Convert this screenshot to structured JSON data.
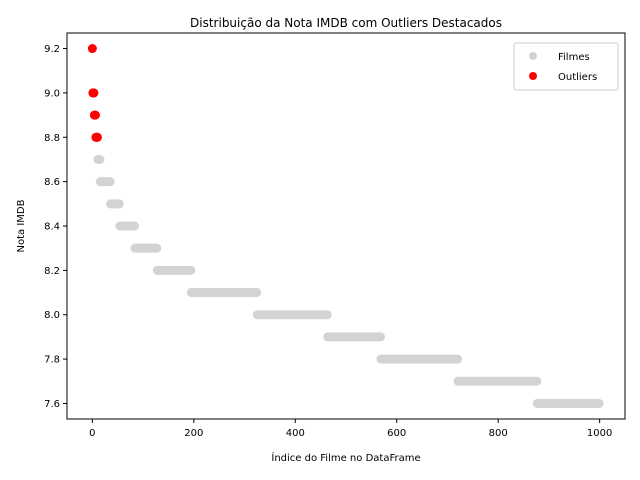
{
  "chart_data": {
    "type": "scatter",
    "title": "Distribuição da Nota IMDB com Outliers Destacados",
    "xlabel": "Índice do Filme no DataFrame",
    "ylabel": "Nota IMDB",
    "xlim": [
      -50,
      1050
    ],
    "ylim": [
      7.53,
      9.27
    ],
    "xticks": [
      0,
      200,
      400,
      600,
      800,
      1000
    ],
    "yticks": [
      7.6,
      7.8,
      8.0,
      8.2,
      8.4,
      8.6,
      8.8,
      9.0,
      9.2
    ],
    "grid": false,
    "legend_position": "upper right",
    "series": [
      {
        "name": "Filmes",
        "color": "#d3d3d3",
        "bands": [
          {
            "y": 8.7,
            "x_range": [
              11,
              15
            ]
          },
          {
            "y": 8.6,
            "x_range": [
              16,
              35
            ]
          },
          {
            "y": 8.5,
            "x_range": [
              36,
              53
            ]
          },
          {
            "y": 8.4,
            "x_range": [
              54,
              83
            ]
          },
          {
            "y": 8.3,
            "x_range": [
              84,
              127
            ]
          },
          {
            "y": 8.2,
            "x_range": [
              128,
              194
            ]
          },
          {
            "y": 8.1,
            "x_range": [
              195,
              324
            ]
          },
          {
            "y": 8.0,
            "x_range": [
              325,
              463
            ]
          },
          {
            "y": 7.9,
            "x_range": [
              464,
              568
            ]
          },
          {
            "y": 7.8,
            "x_range": [
              569,
              720
            ]
          },
          {
            "y": 7.7,
            "x_range": [
              721,
              876
            ]
          },
          {
            "y": 7.6,
            "x_range": [
              877,
              999
            ]
          }
        ]
      },
      {
        "name": "Outliers",
        "color": "#ff0000",
        "points": [
          {
            "x": 0,
            "y": 9.2
          },
          {
            "x": 1,
            "y": 9.0
          },
          {
            "x": 2,
            "y": 9.0
          },
          {
            "x": 3,
            "y": 9.0
          },
          {
            "x": 4,
            "y": 8.9
          },
          {
            "x": 5,
            "y": 8.9
          },
          {
            "x": 6,
            "y": 8.9
          },
          {
            "x": 7,
            "y": 8.8
          },
          {
            "x": 8,
            "y": 8.8
          },
          {
            "x": 9,
            "y": 8.8
          },
          {
            "x": 10,
            "y": 8.8
          }
        ]
      }
    ]
  }
}
